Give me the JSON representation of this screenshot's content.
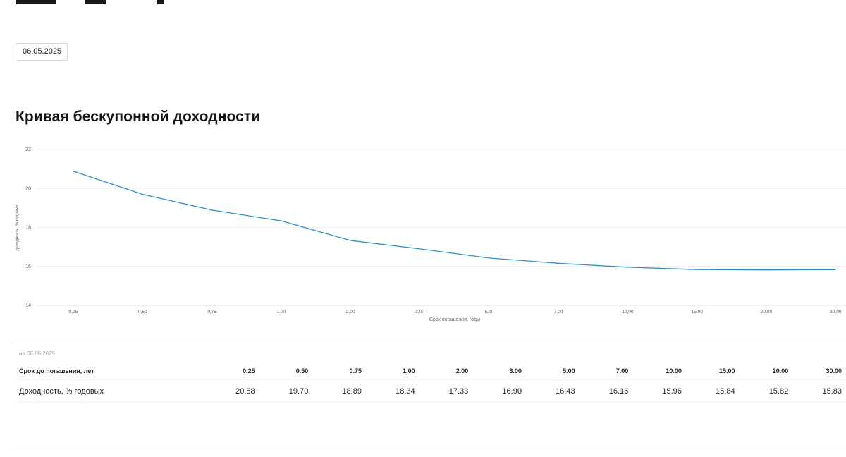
{
  "date_input": {
    "value": "06.05.2025"
  },
  "section_title": "Кривая бескупонной доходности",
  "chart_data": {
    "type": "line",
    "title": "",
    "xlabel": "Срок погашения, годы",
    "ylabel": "доходность, % годовых",
    "categories": [
      "0,25",
      "0,50",
      "0,75",
      "1,00",
      "2,00",
      "3,00",
      "5,00",
      "7,00",
      "10,00",
      "15,00",
      "20,00",
      "30,00"
    ],
    "y_ticks": [
      "14",
      "16",
      "18",
      "20",
      "22"
    ],
    "ylim": [
      14,
      22
    ],
    "grid": true,
    "color": "#2e8fc4",
    "series": [
      {
        "values": [
          20.88,
          19.7,
          18.89,
          18.34,
          17.33,
          16.9,
          16.43,
          16.16,
          15.96,
          15.84,
          15.82,
          15.83
        ]
      }
    ]
  },
  "table": {
    "as_of": "на 06.05.2025",
    "header_label": "Срок до погашения, лет",
    "terms": [
      "0.25",
      "0.50",
      "0.75",
      "1.00",
      "2.00",
      "3.00",
      "5.00",
      "7.00",
      "10.00",
      "15.00",
      "20.00",
      "30.00"
    ],
    "row_label": "Доходность, % годовых",
    "yields": [
      "20.88",
      "19.70",
      "18.89",
      "18.34",
      "17.33",
      "16.90",
      "16.43",
      "16.16",
      "15.96",
      "15.84",
      "15.82",
      "15.83"
    ]
  }
}
